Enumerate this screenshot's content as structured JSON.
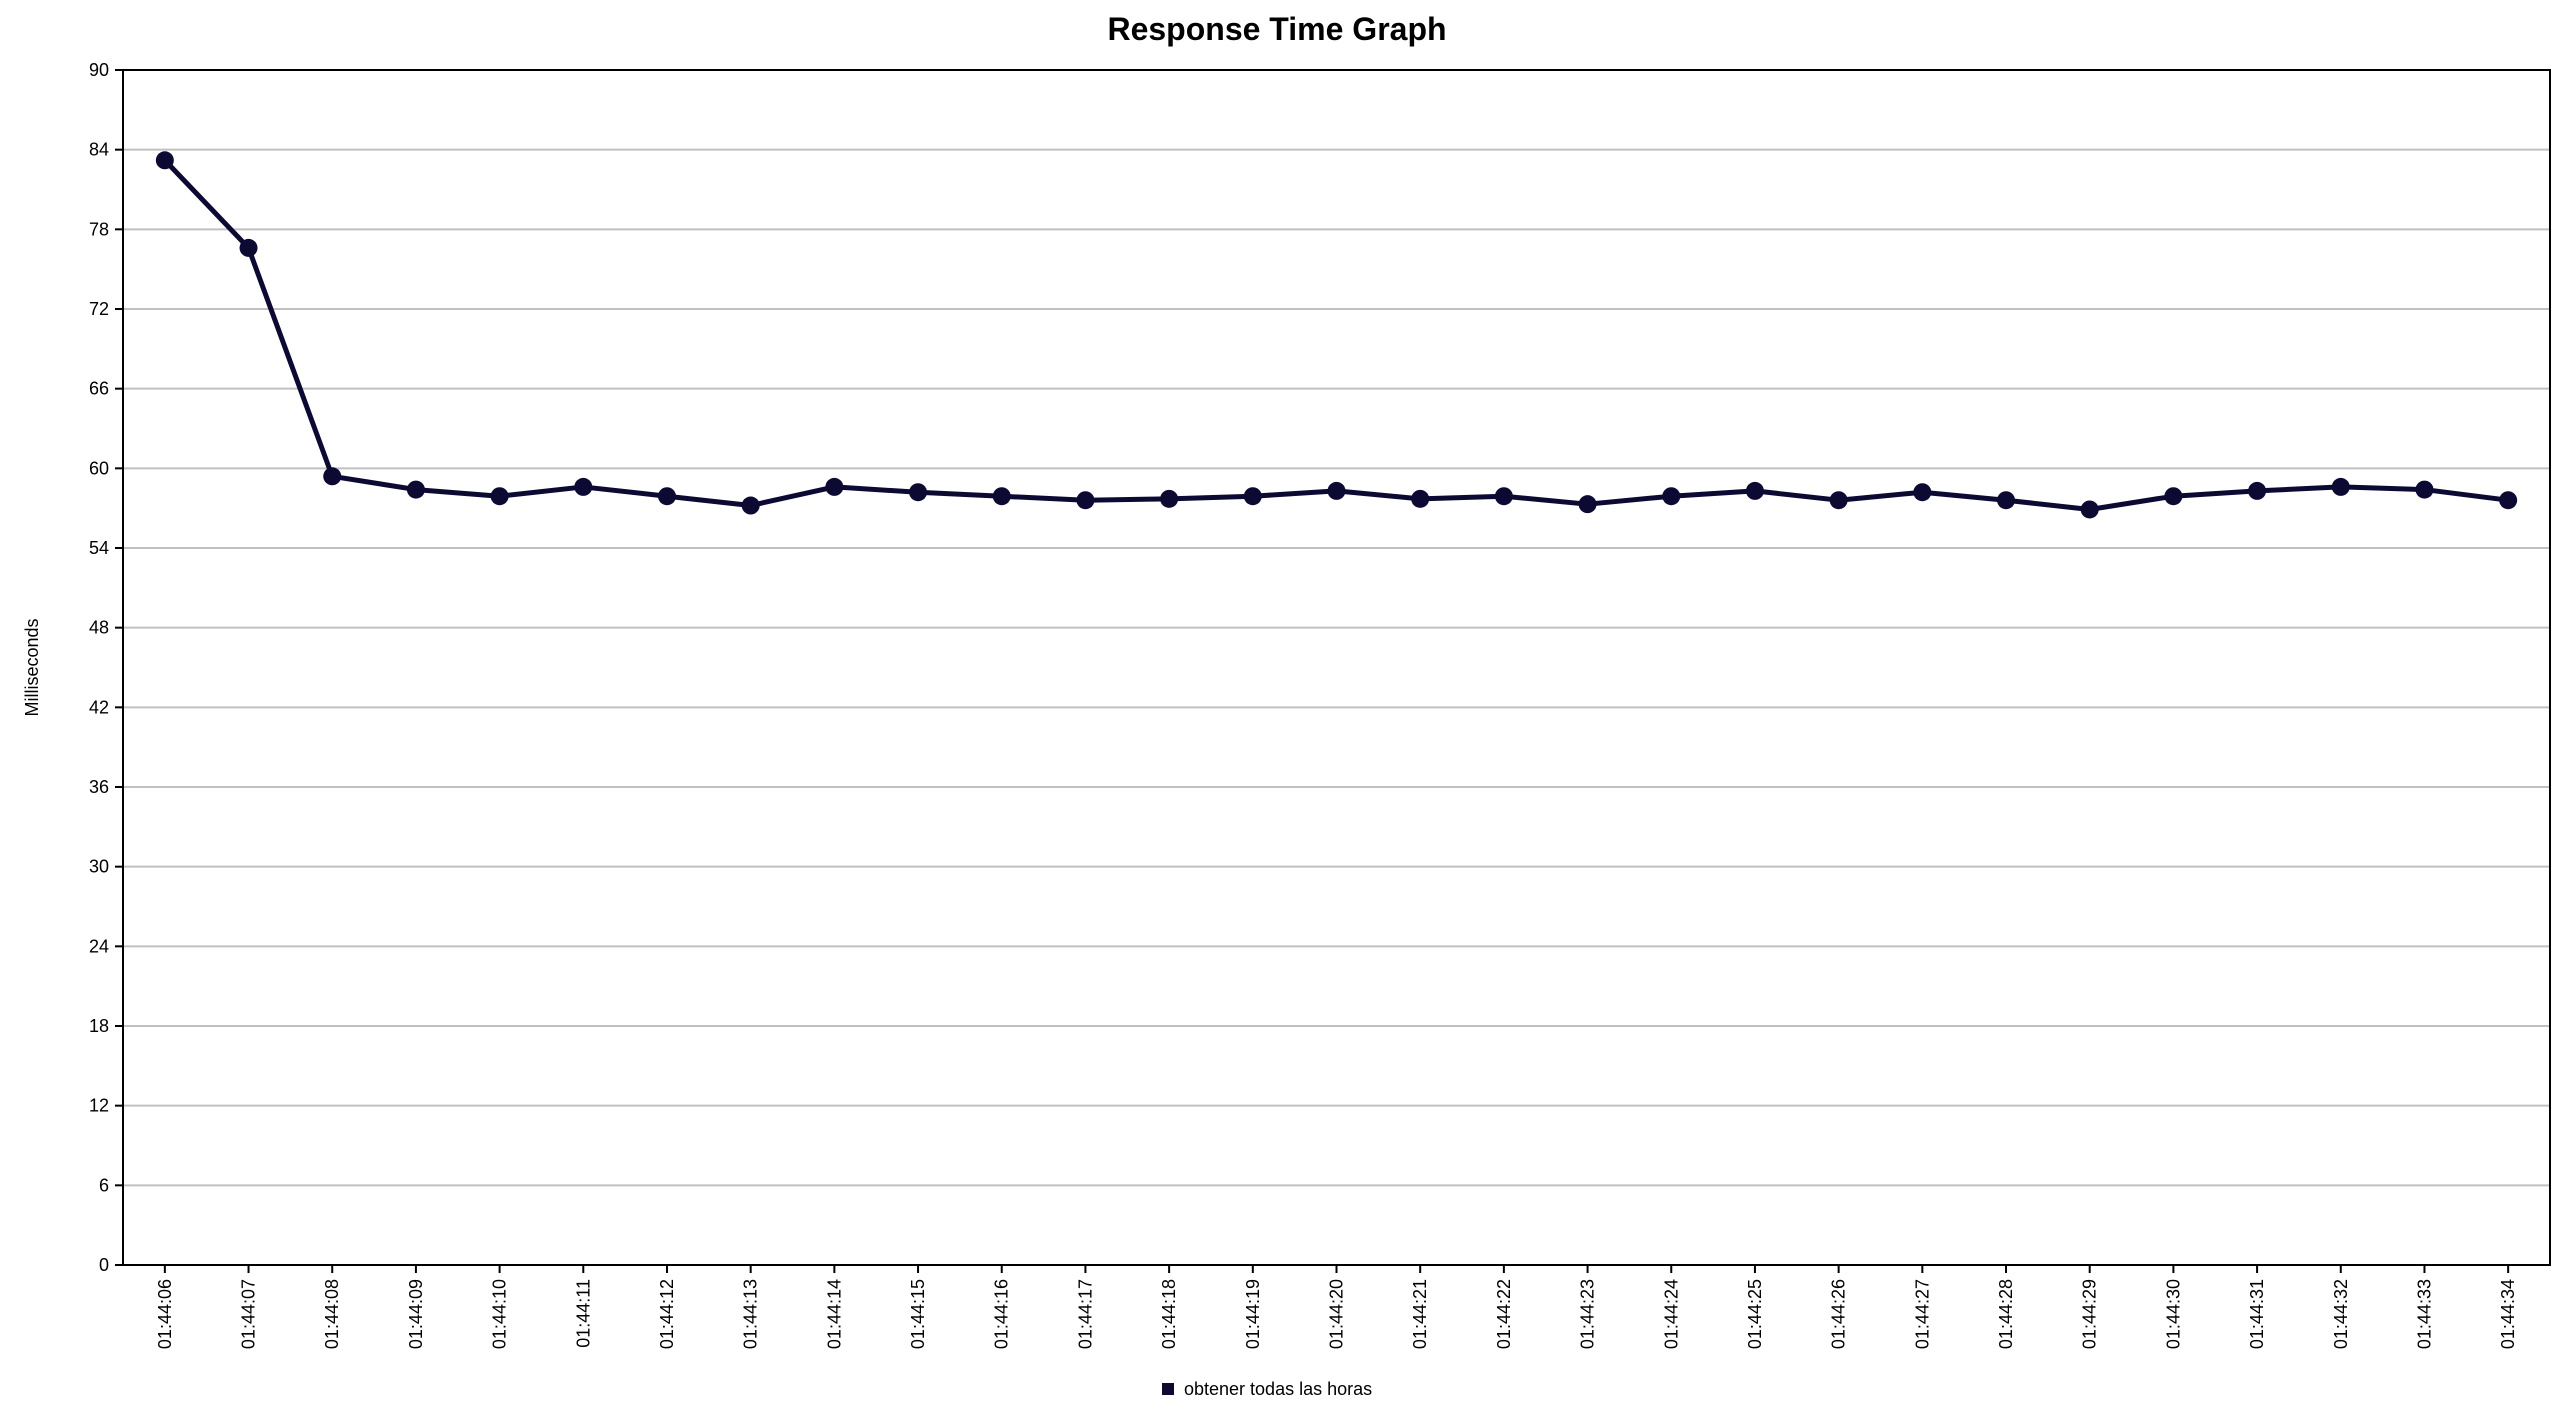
{
  "chart_data": {
    "type": "line",
    "title": "Response Time Graph",
    "xlabel": "",
    "ylabel": "Milliseconds",
    "ylim": [
      0,
      90
    ],
    "yticks": [
      0,
      6,
      12,
      18,
      24,
      30,
      36,
      42,
      48,
      54,
      60,
      66,
      72,
      78,
      84,
      90
    ],
    "grid": true,
    "legend_position": "bottom-center",
    "categories": [
      "01:44:06",
      "01:44:07",
      "01:44:08",
      "01:44:09",
      "01:44:10",
      "01:44:11",
      "01:44:12",
      "01:44:13",
      "01:44:14",
      "01:44:15",
      "01:44:16",
      "01:44:17",
      "01:44:18",
      "01:44:19",
      "01:44:20",
      "01:44:21",
      "01:44:22",
      "01:44:23",
      "01:44:24",
      "01:44:25",
      "01:44:26",
      "01:44:27",
      "01:44:28",
      "01:44:29",
      "01:44:30",
      "01:44:31",
      "01:44:32",
      "01:44:33",
      "01:44:34"
    ],
    "series": [
      {
        "name": "obtener todas las horas",
        "color": "#0c0a33",
        "values": [
          83.2,
          76.6,
          59.4,
          58.4,
          57.9,
          58.6,
          57.9,
          57.2,
          58.6,
          58.2,
          57.9,
          57.6,
          57.7,
          57.9,
          58.3,
          57.7,
          57.9,
          57.3,
          57.9,
          58.3,
          57.6,
          58.2,
          57.6,
          56.9,
          57.9,
          58.3,
          58.6,
          58.4,
          57.6
        ]
      }
    ]
  }
}
